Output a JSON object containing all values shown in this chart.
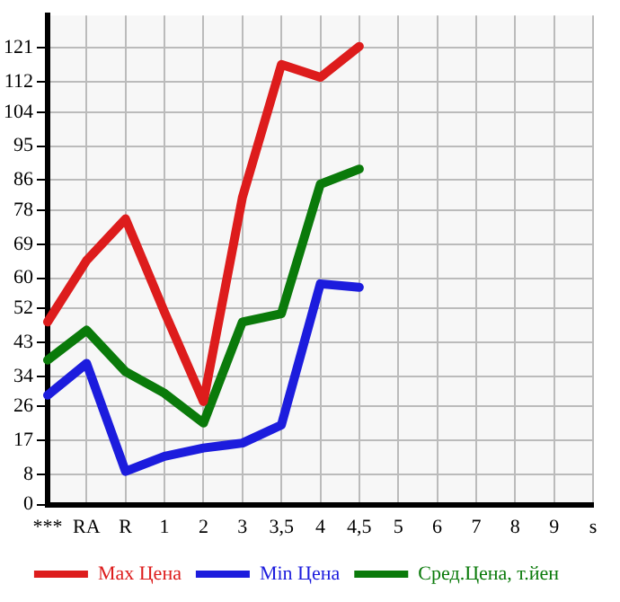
{
  "chart_data": {
    "type": "line",
    "categories": [
      "***",
      "RA",
      "R",
      "1",
      "2",
      "3",
      "3,5",
      "4",
      "4,5",
      "5",
      "6",
      "7",
      "8",
      "9",
      "s"
    ],
    "series": [
      {
        "name": "Max Цена",
        "color": "#dd1c1c",
        "values": [
          48.4,
          64.7,
          75.7,
          51,
          27.3,
          81.4,
          116.6,
          113.2,
          121.4,
          null,
          null,
          null,
          null,
          null,
          null
        ]
      },
      {
        "name": "Min Цена",
        "color": "#1c1cdd",
        "values": [
          29,
          37.4,
          8.8,
          12.8,
          15,
          16.3,
          21.1,
          58.5,
          57.6,
          null,
          null,
          null,
          null,
          null,
          null
        ]
      },
      {
        "name": "Сред.Цена, т.йен",
        "color": "#0a7a0a",
        "values": [
          38.3,
          46.2,
          35.2,
          29.5,
          21.6,
          48.4,
          50.6,
          84.9,
          88.9,
          null,
          null,
          null,
          null,
          null,
          null
        ]
      }
    ],
    "ylim": [
      0,
      129.6
    ],
    "yticks": [
      0,
      8,
      17,
      26,
      34,
      43,
      52,
      60,
      69,
      78,
      86,
      95,
      104,
      112,
      121
    ],
    "grid": true,
    "legend": "bottom",
    "marker": "none",
    "line_style": "solid"
  }
}
